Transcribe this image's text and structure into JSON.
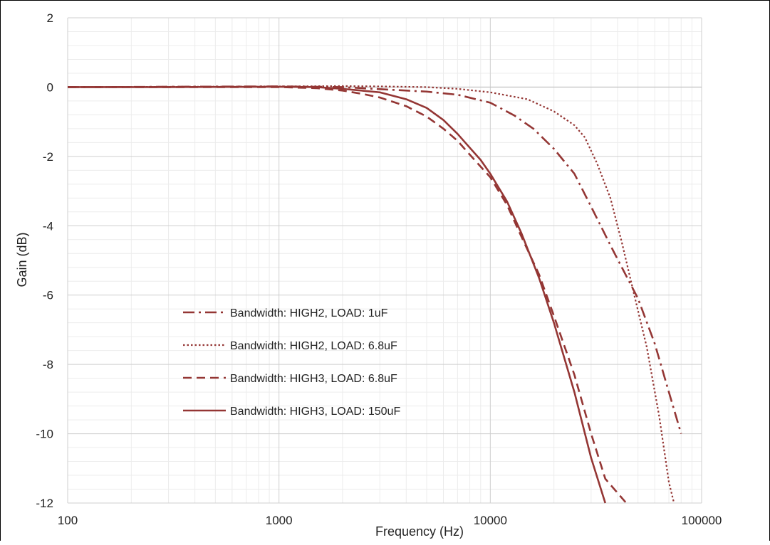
{
  "chart_data": {
    "type": "line",
    "title": "",
    "xlabel": "Frequency (Hz)",
    "ylabel": "Gain (dB)",
    "xscale": "log",
    "xlim": [
      100,
      100000
    ],
    "ylim": [
      -12,
      2
    ],
    "x_ticks": [
      100,
      1000,
      10000,
      100000
    ],
    "x_tick_labels": [
      "100",
      "1000",
      "10000",
      "100000"
    ],
    "y_ticks": [
      2,
      0,
      -2,
      -4,
      -6,
      -8,
      -10,
      -12
    ],
    "y_tick_labels": [
      "2",
      "0",
      "-2",
      "-4",
      "-6",
      "-8",
      "-10",
      "-12"
    ],
    "grid": true,
    "minor_grid": true,
    "legend_position": "inside-center-left",
    "series_color": "#943634",
    "series": [
      {
        "name": "Bandwidth: HIGH2, LOAD: 1uF",
        "style": "dash-dot",
        "points": [
          [
            100,
            0
          ],
          [
            150,
            0
          ],
          [
            300,
            0.01
          ],
          [
            1000,
            0.02
          ],
          [
            2000,
            0.0
          ],
          [
            3000,
            -0.06
          ],
          [
            5000,
            -0.13
          ],
          [
            7000,
            -0.22
          ],
          [
            10000,
            -0.45
          ],
          [
            13000,
            -0.82
          ],
          [
            16000,
            -1.2
          ],
          [
            20000,
            -1.78
          ],
          [
            25000,
            -2.5
          ],
          [
            30000,
            -3.45
          ],
          [
            38000,
            -4.7
          ],
          [
            50000,
            -6.1
          ],
          [
            60000,
            -7.4
          ],
          [
            70000,
            -8.8
          ],
          [
            80000,
            -10.0
          ]
        ]
      },
      {
        "name": "Bandwidth: HIGH2, LOAD: 6.8uF",
        "style": "dotted",
        "points": [
          [
            100,
            0
          ],
          [
            150,
            0
          ],
          [
            300,
            0.01
          ],
          [
            1000,
            0.02
          ],
          [
            2000,
            0.03
          ],
          [
            3000,
            0.02
          ],
          [
            5000,
            0.0
          ],
          [
            7000,
            -0.05
          ],
          [
            10000,
            -0.15
          ],
          [
            15000,
            -0.35
          ],
          [
            20000,
            -0.7
          ],
          [
            25000,
            -1.1
          ],
          [
            28000,
            -1.45
          ],
          [
            32000,
            -2.2
          ],
          [
            37000,
            -3.2
          ],
          [
            42000,
            -4.5
          ],
          [
            48000,
            -6.0
          ],
          [
            55000,
            -7.5
          ],
          [
            63000,
            -9.5
          ],
          [
            70000,
            -11.4
          ],
          [
            74000,
            -12.0
          ]
        ]
      },
      {
        "name": "Bandwidth: HIGH3, LOAD: 6.8uF",
        "style": "dashed",
        "points": [
          [
            100,
            0
          ],
          [
            300,
            0.0
          ],
          [
            1000,
            0.0
          ],
          [
            1500,
            -0.03
          ],
          [
            2000,
            -0.1
          ],
          [
            2500,
            -0.2
          ],
          [
            3000,
            -0.3
          ],
          [
            4000,
            -0.55
          ],
          [
            5000,
            -0.85
          ],
          [
            6000,
            -1.2
          ],
          [
            7000,
            -1.55
          ],
          [
            8000,
            -1.95
          ],
          [
            10000,
            -2.6
          ],
          [
            12000,
            -3.4
          ],
          [
            14000,
            -4.3
          ],
          [
            17000,
            -5.4
          ],
          [
            20000,
            -6.6
          ],
          [
            25000,
            -8.3
          ],
          [
            30000,
            -10.0
          ],
          [
            35000,
            -11.3
          ],
          [
            44000,
            -12.0
          ]
        ]
      },
      {
        "name": "Bandwidth: HIGH3, LOAD: 150uF",
        "style": "solid",
        "points": [
          [
            100,
            0
          ],
          [
            300,
            0.0
          ],
          [
            1000,
            0.01
          ],
          [
            1500,
            0.0
          ],
          [
            2000,
            -0.05
          ],
          [
            3000,
            -0.15
          ],
          [
            4000,
            -0.35
          ],
          [
            5000,
            -0.6
          ],
          [
            6000,
            -0.95
          ],
          [
            7000,
            -1.35
          ],
          [
            8000,
            -1.75
          ],
          [
            9000,
            -2.1
          ],
          [
            10000,
            -2.5
          ],
          [
            12000,
            -3.3
          ],
          [
            14000,
            -4.2
          ],
          [
            17000,
            -5.5
          ],
          [
            20000,
            -6.8
          ],
          [
            25000,
            -8.8
          ],
          [
            30000,
            -10.7
          ],
          [
            35000,
            -12.0
          ]
        ]
      }
    ]
  }
}
